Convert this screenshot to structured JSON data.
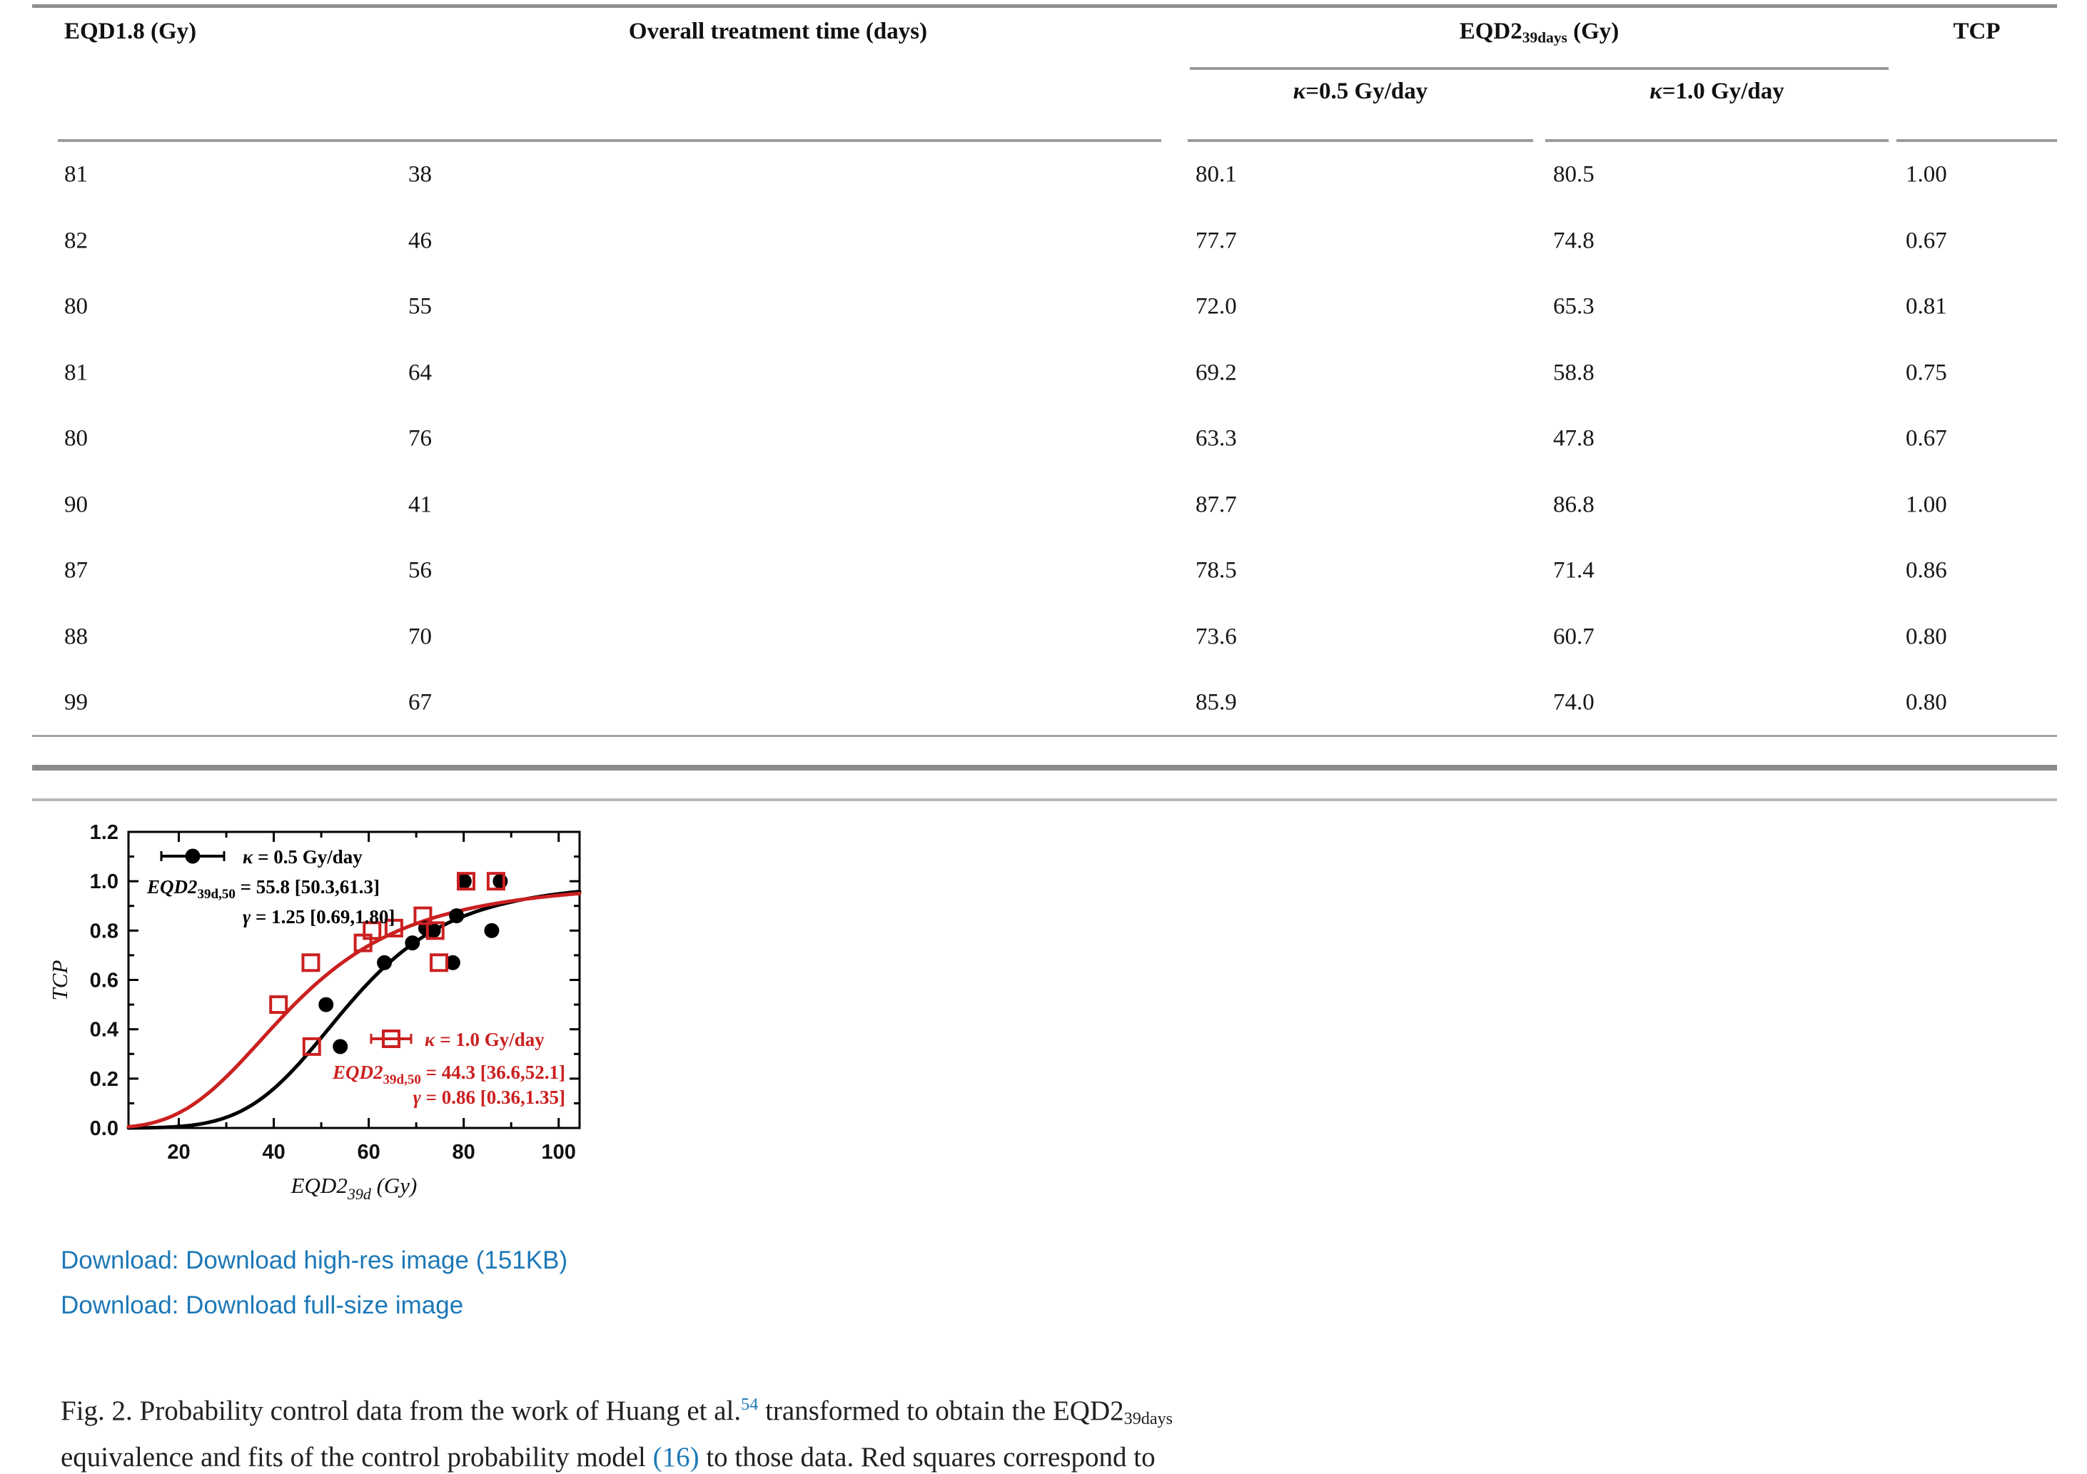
{
  "table": {
    "headers": {
      "eqd18": "EQD1.8 (Gy)",
      "overall_time": "Overall treatment time (days)",
      "eqd2_base": "EQD2",
      "eqd2_sub": "39days",
      "eqd2_unit": " (Gy)",
      "tcp": "TCP",
      "kappa05_symbol": "κ",
      "kappa05_rest": "=0.5 Gy/day",
      "kappa10_symbol": "κ",
      "kappa10_rest": "=1.0 Gy/day"
    },
    "rows": [
      [
        "81",
        "38",
        "80.1",
        "80.5",
        "1.00"
      ],
      [
        "82",
        "46",
        "77.7",
        "74.8",
        "0.67"
      ],
      [
        "80",
        "55",
        "72.0",
        "65.3",
        "0.81"
      ],
      [
        "81",
        "64",
        "69.2",
        "58.8",
        "0.75"
      ],
      [
        "80",
        "76",
        "63.3",
        "47.8",
        "0.67"
      ],
      [
        "90",
        "41",
        "87.7",
        "86.8",
        "1.00"
      ],
      [
        "87",
        "56",
        "78.5",
        "71.4",
        "0.86"
      ],
      [
        "88",
        "70",
        "73.6",
        "60.7",
        "0.80"
      ],
      [
        "99",
        "67",
        "85.9",
        "74.0",
        "0.80"
      ]
    ]
  },
  "figure": {
    "download_highres": "Download: Download high-res image (151KB)",
    "download_fullsize": "Download: Download full-size image",
    "link_color": "#1c78b7",
    "caption": {
      "text1": "Fig. 2. Probability control data from the work of Huang et al.",
      "ref": "54",
      "text2": " transformed to obtain the EQD2",
      "sub": "39days",
      "text3": "equivalence and fits of the control probability model ",
      "eq_ref": "(16)",
      "text4": " to those data. Red squares correspond to"
    }
  },
  "chart_data": {
    "type": "scatter",
    "ylabel": "TCP",
    "xlabel_prefix": "EQD2",
    "xlabel_sub": "39d",
    "xlabel_suffix": " (Gy)",
    "xlim": [
      9.4,
      104.4
    ],
    "ylim": [
      0,
      1.2
    ],
    "xticks": [
      20,
      40,
      60,
      80,
      100
    ],
    "xticks_minor": [
      30,
      50,
      70,
      90
    ],
    "ytick_labels": [
      "0.0",
      "0.2",
      "0.4",
      "0.6",
      "0.8",
      "1.0",
      "1.2"
    ],
    "yticks": [
      0,
      0.2,
      0.4,
      0.6,
      0.8,
      1.0,
      1.2
    ],
    "yticks_minor": [
      0.1,
      0.3,
      0.5,
      0.7,
      0.9,
      1.1
    ],
    "grid": false,
    "frame_color": "#000000",
    "series": [
      {
        "name_symbol": "κ",
        "name_rest": " = 0.5 Gy/day",
        "marker": "circle",
        "color": "#000000",
        "fit": {
          "d50": 55.8,
          "gamma": 1.25
        },
        "legend_prefix": "EQD2",
        "legend_sub": "39d,50",
        "legend_value": " = 55.8 [50.3,61.3]",
        "legend_gamma_symbol": "γ",
        "legend_gamma_rest": " = 1.25 [0.69,1.80]",
        "points": [
          [
            51,
            0.5
          ],
          [
            54,
            0.33
          ],
          [
            63.3,
            0.67
          ],
          [
            69.2,
            0.75
          ],
          [
            72.0,
            0.81
          ],
          [
            73.6,
            0.8
          ],
          [
            77.7,
            0.67
          ],
          [
            78.5,
            0.86
          ],
          [
            80.1,
            1.0
          ],
          [
            85.9,
            0.8
          ],
          [
            87.7,
            1.0
          ]
        ]
      },
      {
        "name_symbol": "κ",
        "name_rest": " = 1.0 Gy/day",
        "marker": "square",
        "color": "#cb2020",
        "fit": {
          "d50": 44.3,
          "gamma": 0.86
        },
        "legend_prefix": "EQD2",
        "legend_sub": "39d,50",
        "legend_value": " = 44.3 [36.6,52.1]",
        "legend_gamma_symbol": "γ",
        "legend_gamma_rest": " = 0.86 [0.36,1.35]",
        "points": [
          [
            41,
            0.5
          ],
          [
            48,
            0.33
          ],
          [
            47.8,
            0.67
          ],
          [
            58.8,
            0.75
          ],
          [
            60.7,
            0.8
          ],
          [
            65.3,
            0.81
          ],
          [
            71.4,
            0.86
          ],
          [
            74.0,
            0.8
          ],
          [
            74.8,
            0.67
          ],
          [
            80.5,
            1.0
          ],
          [
            86.8,
            1.0
          ]
        ]
      }
    ]
  }
}
